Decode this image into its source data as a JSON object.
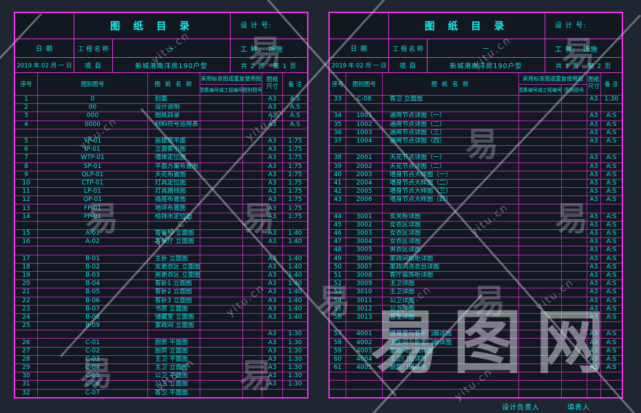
{
  "watermark": {
    "glyph": "易",
    "site": "yitu.cn",
    "brand": "易图网"
  },
  "colors": {
    "border_magenta": "#ef32ef",
    "grid_magenta": "#b527b5",
    "text_cyan": "#0ce6e6",
    "panel_bg": "#12181f",
    "page_bg": "#202630"
  },
  "footer": {
    "designer_label": "设计负责人",
    "filler_label": "填表人"
  },
  "table_header": {
    "seq": "序号",
    "code": "图别图号",
    "name": "图 纸 名 称",
    "std_group": "采用标准图或重复使用图",
    "std_no": "图集编号或工程编号",
    "std_code": "图别图号",
    "size_l1": "图纸",
    "size_l2": "尺寸",
    "note": "备 注"
  },
  "panels": [
    {
      "title": "图 纸 目 录",
      "design_no_label": "设 计 号:",
      "date_label": "日 期",
      "project_name_label": "工 程 名 称",
      "project_name_value": "—",
      "trade_label": "工 种:",
      "trade_value": "饰施",
      "date_value": "2019 年 02 月 一 日",
      "project_label": "项 目",
      "project_value": "新城港南洋房190户型",
      "pages_total": "共 2 页",
      "page_current": "第 1 页",
      "rows": [
        [
          "1",
          "0",
          "封面",
          "",
          "",
          "A3",
          "A.S"
        ],
        [
          "2",
          "00",
          "设计说明",
          "",
          "",
          "A3",
          "A.S"
        ],
        [
          "3",
          "000",
          "图纸目录",
          "",
          "",
          "A3",
          "A.S"
        ],
        [
          "4",
          "0000",
          "材料符号运用表",
          "",
          "",
          "A3",
          "A.S"
        ],
        [
          "",
          "",
          "",
          "",
          "",
          "",
          ""
        ],
        [
          "5",
          "YP-01",
          "原建筑平面",
          "",
          "",
          "A3",
          "1:75"
        ],
        [
          "6",
          "IP-01",
          "立面索引图",
          "",
          "",
          "A3",
          "1:75"
        ],
        [
          "7",
          "WTP-01",
          "墙体定位图",
          "",
          "",
          "A3",
          "1:75"
        ],
        [
          "8",
          "SP-01",
          "平面方案布置图",
          "",
          "",
          "A3",
          "1:75"
        ],
        [
          "9",
          "QLP-01",
          "天花布置图",
          "",
          "",
          "A3",
          "1:75"
        ],
        [
          "10",
          "CTP-01",
          "灯具定位图",
          "",
          "",
          "A3",
          "1:75"
        ],
        [
          "11",
          "LP-01",
          "灯具路线图",
          "",
          "",
          "A3",
          "1:75"
        ],
        [
          "12",
          "QP-01",
          "插座布置图",
          "",
          "",
          "A3",
          "1:75"
        ],
        [
          "13",
          "FP-01",
          "地坪布置图",
          "",
          "",
          "A3",
          "1:75"
        ],
        [
          "14",
          "PP-01",
          "给排水定位图",
          "",
          "",
          "A3",
          "1:75"
        ],
        [
          "",
          "",
          "",
          "",
          "",
          "",
          ""
        ],
        [
          "15",
          "A-01",
          "客餐厅 立面图",
          "",
          "",
          "A3",
          "1:40"
        ],
        [
          "16",
          "A-02",
          "客餐厅 立面图",
          "",
          "",
          "A3",
          "1:40"
        ],
        [
          "",
          "",
          "",
          "",
          "",
          "",
          ""
        ],
        [
          "17",
          "B-01",
          "主卧  立面图",
          "",
          "",
          "A3",
          "1:40"
        ],
        [
          "18",
          "B-02",
          "女更衣区 立面图",
          "",
          "",
          "A3",
          "1:40"
        ],
        [
          "19",
          "B-03",
          "男更衣区 立面图",
          "",
          "",
          "A3",
          "1:40"
        ],
        [
          "20",
          "B-04",
          "客卧1 立面图",
          "",
          "",
          "A3",
          "1:40"
        ],
        [
          "21",
          "B-05",
          "客卧2 立面图",
          "",
          "",
          "A3",
          "1:40"
        ],
        [
          "22",
          "B-06",
          "客卧3 立面图",
          "",
          "",
          "A3",
          "1:40"
        ],
        [
          "23",
          "B-07",
          "书房  立面图",
          "",
          "",
          "A3",
          "1:40"
        ],
        [
          "24",
          "B-08",
          "储藏室 立面图",
          "",
          "",
          "A3",
          "1:40"
        ],
        [
          "25",
          "B-09",
          "家政间 立面图",
          "",
          "",
          "",
          ""
        ],
        [
          "",
          "",
          "",
          "",
          "",
          "A3",
          "1:30"
        ],
        [
          "26",
          "C-01",
          "厨房 平面图",
          "",
          "",
          "A3",
          "1:30"
        ],
        [
          "27",
          "C-02",
          "厨房 立面图",
          "",
          "",
          "A3",
          "1:30"
        ],
        [
          "28",
          "C-03",
          "主卫 平面图",
          "",
          "",
          "A3",
          "1:30"
        ],
        [
          "29",
          "C-04",
          "主卫 立面图",
          "",
          "",
          "A3",
          "1:30"
        ],
        [
          "30",
          "C-05",
          "公卫 平面图",
          "",
          "",
          "A3",
          "1:30"
        ],
        [
          "31",
          "C-06",
          "公卫 立面图",
          "",
          "",
          "A3",
          "1:30"
        ],
        [
          "32",
          "C-07",
          "客卫 平面图",
          "",
          "",
          "",
          ""
        ]
      ]
    },
    {
      "title": "图 纸 目 录",
      "design_no_label": "设 计 号:",
      "date_label": "日 期",
      "project_name_label": "工 程 名 称",
      "project_name_value": "—",
      "trade_label": "工 种:",
      "trade_value": "饰施",
      "date_value": "2019 年 02 月 一 日",
      "project_label": "项 目",
      "project_value": "新城港南洋房190户型",
      "pages_total": "共 2 页",
      "page_current": "第 2 页",
      "rows": [
        [
          "33",
          "C-08",
          "客卫 立面图",
          "",
          "",
          "A3",
          "1:30"
        ],
        [
          "",
          "",
          "",
          "",
          "",
          "",
          ""
        ],
        [
          "34",
          "1001",
          "通用节点详图（一）",
          "",
          "",
          "A3",
          "A:S"
        ],
        [
          "35",
          "1002",
          "通用节点详图（二）",
          "",
          "",
          "A3",
          "A:S"
        ],
        [
          "36",
          "1003",
          "通用节点详图（三）",
          "",
          "",
          "A3",
          "A:S"
        ],
        [
          "37",
          "1004",
          "通用节点详图（四）",
          "",
          "",
          "A3",
          "A:S"
        ],
        [
          "",
          "",
          "",
          "",
          "",
          "",
          ""
        ],
        [
          "38",
          "2001",
          "天花节点详图（一）",
          "",
          "",
          "A3",
          "A:S"
        ],
        [
          "39",
          "2002",
          "天花节点详图（二）",
          "",
          "",
          "A3",
          "A:S"
        ],
        [
          "40",
          "2003",
          "墙身节点大样图（一）",
          "",
          "",
          "A3",
          "A:S"
        ],
        [
          "41",
          "2004",
          "墙身节点大样图（二）",
          "",
          "",
          "A3",
          "A:S"
        ],
        [
          "42",
          "2005",
          "墙身节点大样图（三）",
          "",
          "",
          "A3",
          "A:S"
        ],
        [
          "43",
          "2006",
          "墙身节点大样图（四）",
          "",
          "",
          "A3",
          "A:S"
        ],
        [
          "",
          "",
          "",
          "",
          "",
          "",
          ""
        ],
        [
          "44",
          "3001",
          "玄关柜详图",
          "",
          "",
          "A3",
          "A:S"
        ],
        [
          "45",
          "3002",
          "女衣区详图",
          "",
          "",
          "A3",
          "A:S"
        ],
        [
          "46",
          "3003",
          "女衣区详图",
          "",
          "",
          "A3",
          "A:S"
        ],
        [
          "47",
          "3004",
          "女衣区详图",
          "",
          "",
          "A3",
          "A:S"
        ],
        [
          "48",
          "3005",
          "男衣区详图",
          "",
          "",
          "A3",
          "A:S"
        ],
        [
          "49",
          "3006",
          "家政间橱柜详图",
          "",
          "",
          "A3",
          "A:S"
        ],
        [
          "50",
          "3007",
          "家政间洗衣台详图",
          "",
          "",
          "A3",
          "A:S"
        ],
        [
          "51",
          "3008",
          "客厅装饰柜详图",
          "",
          "",
          "A3",
          "A:S"
        ],
        [
          "52",
          "3009",
          "主卫详图",
          "",
          "",
          "A3",
          "A:S"
        ],
        [
          "53",
          "3010",
          "主卫详图",
          "",
          "",
          "A3",
          "A:S"
        ],
        [
          "54",
          "3011",
          "公卫详图",
          "",
          "",
          "A3",
          "A:S"
        ],
        [
          "55",
          "3012",
          "公卫详图",
          "",
          "",
          "A3",
          "A:S"
        ],
        [
          "56",
          "3013",
          "客卫详图",
          "",
          "",
          "A3",
          "A:S"
        ],
        [
          "",
          "",
          "",
          "",
          "",
          "",
          ""
        ],
        [
          "57",
          "4001",
          "健身室与客卧门扇详图",
          "",
          "",
          "A3",
          "A:S"
        ],
        [
          "58",
          "4002",
          "卫生间与卧室门扇详图",
          "",
          "",
          "A3",
          "A:S"
        ],
        [
          "59",
          "4003",
          "家政间门扇详图",
          "",
          "",
          "A3",
          "A:S"
        ],
        [
          "60",
          "4004",
          "主卫门扇详图",
          "",
          "",
          "A3",
          "A:S"
        ],
        [
          "61",
          "4005",
          "厨房门扇详图",
          "",
          "",
          "A3",
          "A:S"
        ],
        [
          "",
          "",
          "",
          "",
          "",
          "",
          ""
        ],
        [
          "",
          "",
          "",
          "",
          "",
          "",
          ""
        ],
        [
          "",
          "",
          "",
          "",
          "",
          "",
          ""
        ]
      ]
    }
  ]
}
